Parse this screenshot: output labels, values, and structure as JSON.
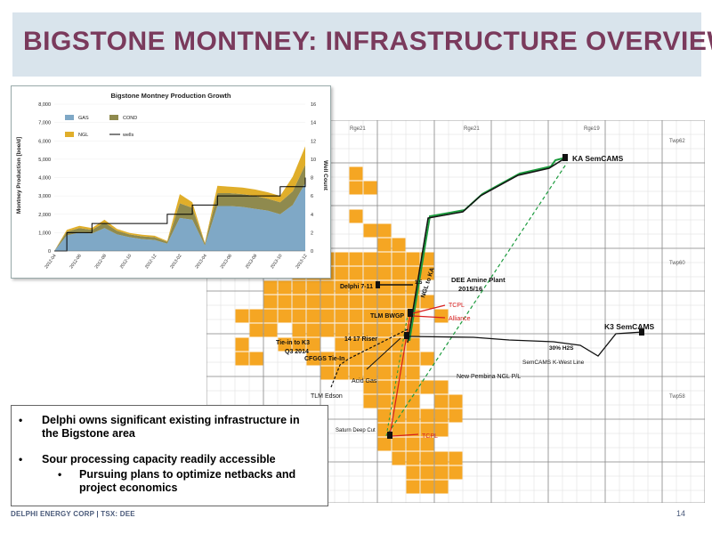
{
  "slide": {
    "title": "BIGSTONE MONTNEY:  INFRASTRUCTURE OVERVIEW",
    "footer_company": "DELPHI ENERGY CORP | TSX: DEE",
    "page_number": "14"
  },
  "bullets": [
    {
      "text": "Delphi owns significant existing infrastructure in",
      "text2": "the Bigstone area"
    },
    {
      "text": "Sour processing capacity readily accessible"
    },
    {
      "text": "Pursuing plans to optimize netbacks and",
      "text2": "project economics"
    }
  ],
  "map": {
    "grid_labels": {
      "rge21": "Rge21",
      "rge21b": "Rge21",
      "rge19": "Rge19",
      "twp62": "Twp62",
      "twp60": "Twp60",
      "twp58": "Twp58"
    },
    "labels": {
      "ka_semcams": "KA SemCAMS",
      "k3_semcams": "K3 SemCAMS",
      "delphi_7_11": "Delphi 7-11",
      "dee_amine_1": "DEE Amine Plant",
      "dee_amine_2": "2015/16",
      "ngl_to_ka": "NGL to KA",
      "tlm_bwgp": "TLM BWGP",
      "tcpl_top": "TCPL",
      "alliance": "Alliance",
      "tie_in_k3": "Tie-in to K3",
      "q3_2014": "Q3 2014",
      "riser": "14 17 Riser",
      "cfggs": "CFGGS Tie-In",
      "acid_gas": "Acid Gas",
      "tlm_edson": "TLM Edson",
      "pembina": "New Pembina NGL P/L",
      "semcams_kwest": "SemCAMS K-West Line",
      "h2s": "30% H2S",
      "saturn": "Saturn Deep Cut",
      "tcpl_bottom": "TCPL",
      "small_15": "1.5"
    }
  },
  "colors": {
    "title": "#7a3a5c",
    "lease": "#f5a623",
    "gas": "#7fa8c6",
    "cond": "#8f8a4e",
    "ngl": "#e0ae2a",
    "green_line": "#1c9b3e",
    "red_line": "#d81e1e"
  },
  "chart_data": {
    "type": "area",
    "title": "Bigstone Montney Production Growth",
    "ylabel": "Montney Production [boe/d]",
    "ylabel_right": "Well Count",
    "ylim": [
      0,
      8000
    ],
    "ylim_right": [
      0,
      16
    ],
    "yticks": [
      "0",
      "1,000",
      "2,000",
      "3,000",
      "4,000",
      "5,000",
      "6,000",
      "7,000",
      "8,000"
    ],
    "yticks_right": [
      "0",
      "2",
      "4",
      "6",
      "8",
      "10",
      "12",
      "14",
      "16"
    ],
    "x": [
      "2012-04",
      "2012-05",
      "2012-06",
      "2012-07",
      "2012-08",
      "2012-09",
      "2012-10",
      "2012-11",
      "2012-12",
      "2013-01",
      "2013-02",
      "2013-03",
      "2013-04",
      "2013-05",
      "2013-06",
      "2013-07",
      "2013-08",
      "2013-09",
      "2013-10",
      "2013-11",
      "2013-12"
    ],
    "xtick_labels": [
      "2012-04",
      "2012-06",
      "2012-08",
      "2012-10",
      "2012-12",
      "2013-02",
      "2013-04",
      "2013-06",
      "2013-08",
      "2013-10",
      "2013-12"
    ],
    "series": [
      {
        "name": "GAS",
        "values": [
          0,
          850,
          1000,
          950,
          1250,
          900,
          750,
          650,
          600,
          400,
          1800,
          1700,
          300,
          2450,
          2450,
          2400,
          2300,
          2200,
          2000,
          2500,
          3700
        ]
      },
      {
        "name": "COND",
        "values": [
          0,
          200,
          250,
          200,
          300,
          200,
          150,
          150,
          150,
          100,
          800,
          650,
          100,
          700,
          700,
          700,
          700,
          650,
          650,
          750,
          1000
        ]
      },
      {
        "name": "NGL",
        "values": [
          0,
          100,
          120,
          100,
          150,
          100,
          80,
          80,
          80,
          50,
          500,
          300,
          50,
          400,
          350,
          350,
          350,
          350,
          350,
          800,
          1000
        ]
      },
      {
        "name": "wells",
        "axis": "right",
        "values": [
          0,
          2,
          2,
          3,
          3,
          3,
          3,
          3,
          3,
          4,
          4,
          5,
          5,
          6,
          6,
          6,
          6,
          6,
          7,
          7,
          8
        ]
      }
    ],
    "legend": [
      {
        "name": "GAS",
        "color": "#7fa8c6"
      },
      {
        "name": "COND",
        "color": "#8f8a4e"
      },
      {
        "name": "NGL",
        "color": "#e0ae2a"
      },
      {
        "name": "wells",
        "color": "#000000"
      }
    ]
  }
}
